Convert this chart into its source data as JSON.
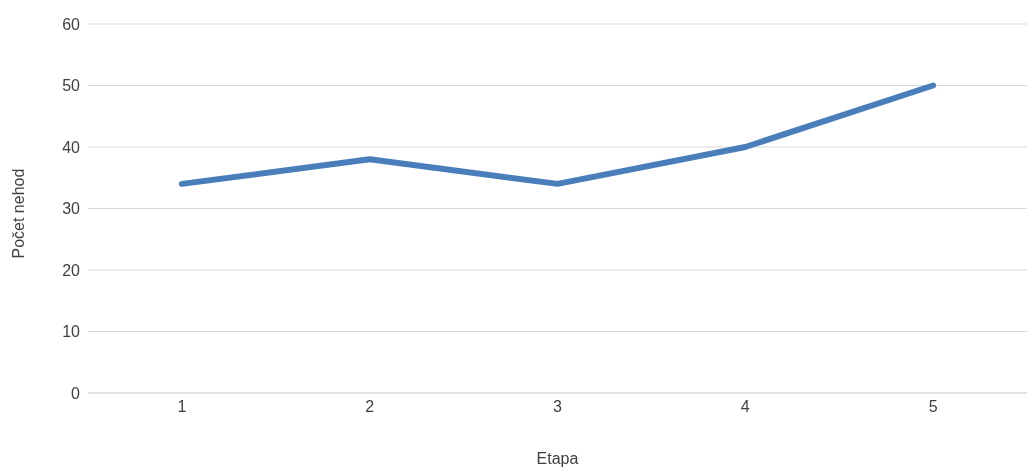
{
  "chart_data": {
    "type": "line",
    "xlabel": "Etapa",
    "ylabel": "Počet nehod",
    "categories": [
      "1",
      "2",
      "3",
      "4",
      "5"
    ],
    "series": [
      {
        "color": "#4a7ebb",
        "values": [
          34,
          38,
          34,
          40,
          50
        ]
      }
    ],
    "ylim": [
      0,
      60
    ],
    "yticks": [
      0,
      10,
      20,
      30,
      40,
      50,
      60
    ],
    "grid": "y",
    "legend": false,
    "marker": "none",
    "line_style": "solid"
  }
}
